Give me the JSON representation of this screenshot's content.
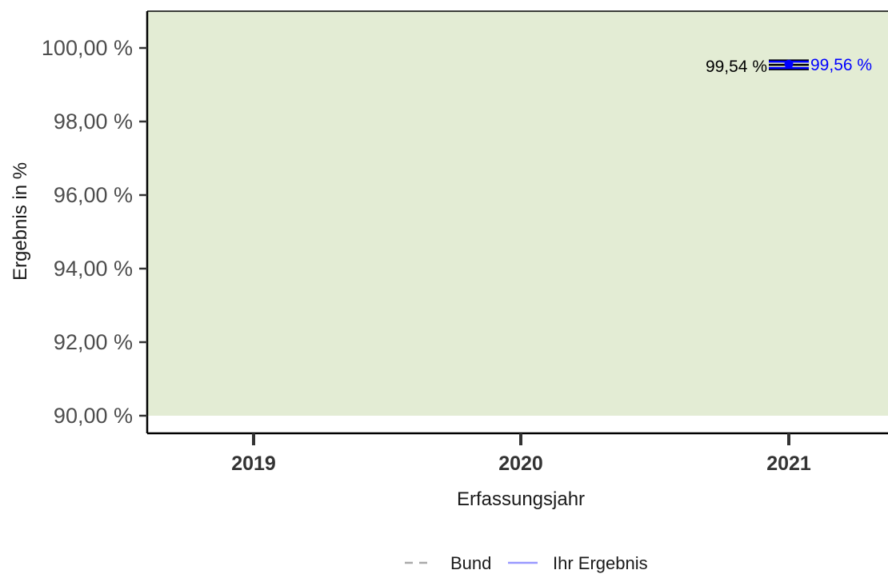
{
  "chart_data": {
    "type": "line",
    "categories": [
      "2019",
      "2020",
      "2021"
    ],
    "xlabel": "Erfassungsjahr",
    "ylabel": "Ergebnis in %",
    "ylim": [
      90,
      100
    ],
    "yticks": [
      {
        "value": 90,
        "label": "90,00 %"
      },
      {
        "value": 92,
        "label": "92,00 %"
      },
      {
        "value": 94,
        "label": "94,00 %"
      },
      {
        "value": 96,
        "label": "96,00 %"
      },
      {
        "value": 98,
        "label": "98,00 %"
      },
      {
        "value": 100,
        "label": "100,00 %"
      }
    ],
    "reference_band": {
      "from": 90,
      "to": 100,
      "color": "#e3ecd4"
    },
    "series": [
      {
        "name": "Bund",
        "color": "#000000",
        "legend_color": "#aaaaaa",
        "line_style": "dashed",
        "points": [
          {
            "x": "2021",
            "y": 99.54,
            "label": "99,54 %",
            "ci": [
              99.42,
              99.66
            ]
          }
        ]
      },
      {
        "name": "Ihr Ergebnis",
        "color": "#0000ff",
        "legend_color": "#9999ff",
        "line_style": "solid",
        "points": [
          {
            "x": "2021",
            "y": 99.56,
            "label": "99,56 %",
            "ci": [
              99.42,
              99.66
            ]
          }
        ]
      }
    ],
    "grid": false,
    "legend_position": "bottom"
  }
}
